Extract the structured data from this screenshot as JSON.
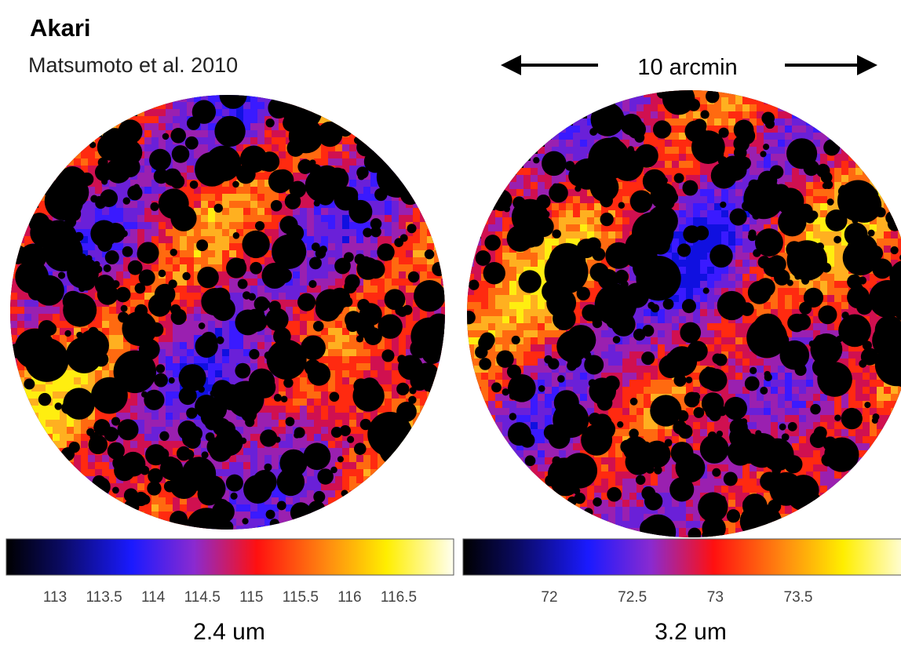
{
  "header": {
    "title": "Akari",
    "subtitle": "Matsumoto et al. 2010"
  },
  "scale_label": "10 arcmin",
  "panels": [
    {
      "caption": "2.4 um",
      "colorbar_ticks": [
        113,
        113.5,
        114,
        114.5,
        115,
        115.5,
        116,
        116.5
      ]
    },
    {
      "caption": "3.2 um",
      "colorbar_ticks": [
        72,
        72.5,
        73,
        73.5
      ]
    }
  ]
}
